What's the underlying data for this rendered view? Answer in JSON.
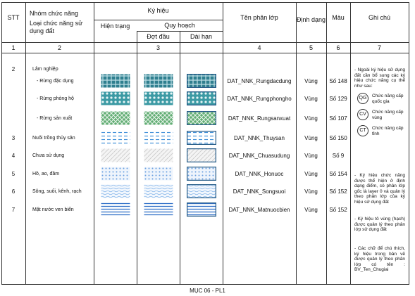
{
  "header": {
    "stt": "STT",
    "group": "Nhóm chức năng",
    "type": "Loại chức năng sử dụng đất",
    "symbol": "Ký hiệu",
    "current": "Hiện trạng",
    "planning": "Quy hoạch",
    "phase1": "Đợt đầu",
    "longterm": "Dài hạn",
    "layer": "Tên phân lớp",
    "format": "Định dạng",
    "color": "Màu",
    "note": "Ghi chú"
  },
  "column_numbers": [
    "1",
    "2",
    "3",
    "4",
    "5",
    "6",
    "7"
  ],
  "rows": [
    {
      "stt": "2",
      "name": "Lâm nghiệp"
    },
    {
      "name": "- Rừng đặc dụng",
      "layer": "DAT_NNK_Rungdacdung",
      "format": "Vùng",
      "color": "Số 148"
    },
    {
      "name": "- Rừng phòng hộ",
      "layer": "DAT_NNK_Rungphongho",
      "format": "Vùng",
      "color": "Số 129"
    },
    {
      "name": "- Rừng sản xuất",
      "layer": "DAT_NNK_Rungsanxuat",
      "format": "Vùng",
      "color": "Số 107"
    },
    {
      "stt": "3",
      "name": "Nuôi trồng thủy sản",
      "layer": "DAT_NNK_Thuysan",
      "format": "Vùng",
      "color": "Số 150"
    },
    {
      "stt": "4",
      "name": "Chưa sử dụng",
      "layer": "DAT_NNK_Chuasudung",
      "format": "Vùng",
      "color": "Số 9"
    },
    {
      "stt": "5",
      "name": "Hồ, ao, đầm",
      "layer": "DAT_NNK_Honuoc",
      "format": "Vùng",
      "color": "Số 154"
    },
    {
      "stt": "6",
      "name": "Sông, suối, kênh, rạch",
      "layer": "DAT_NNK_Songsuoi",
      "format": "Vùng",
      "color": "Số 152"
    },
    {
      "stt": "7",
      "name": "Mặt nước ven biển",
      "layer": "DAT_NNK_Matnuocbien",
      "format": "Vùng",
      "color": "Số 152"
    }
  ],
  "notes": {
    "intro": "- Ngoài ký hiệu sử dụng đất cần bổ sung các ký hiệu chức năng cụ thể như sau:",
    "badges": [
      {
        "code": "QG",
        "text": "Chức năng cấp quốc gia"
      },
      {
        "code": "CV",
        "text": "Chức năng cấp vùng"
      },
      {
        "code": "CT",
        "text": "Chức năng cấp tỉnh"
      }
    ],
    "point": "- Ký hiệu chức năng được thể hiện ở định dạng điểm, có phân lớp gốc là layer 0 và quản lý theo phân lớp của ký hiệu sử dụng đất",
    "hatch": "- Ký hiệu tô vùng (hạch) được quản lý theo phân lớp sử dụng đất",
    "text": "- Các chữ để chú thích, ký hiệu trong bản vẽ được quản lý theo phân lớp có tên : BV_Ten_Chugiai"
  },
  "footer": "MỤC 06 - PL1"
}
